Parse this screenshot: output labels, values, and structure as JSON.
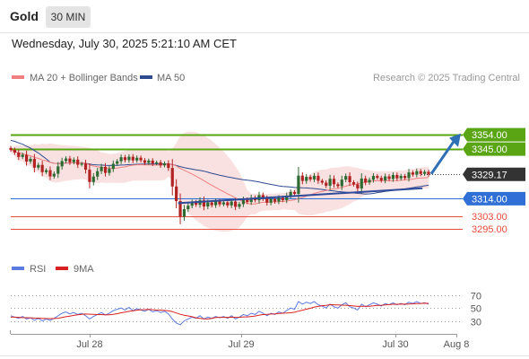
{
  "header": {
    "symbol": "Gold",
    "timeframe": "30 MIN",
    "datetime": "Wednesday, July 30, 2025 5:21:10 AM CET"
  },
  "colors": {
    "ma20_line": "#f08080",
    "bollinger_fill": "#fadede",
    "ma50_line": "#2f4b8f",
    "resistance": "#5aa514",
    "support": "#2f6fd6",
    "support_low": "#e74c3c",
    "candle_up": "#2d6b33",
    "candle_down": "#b22222",
    "trend_line": "#2f4b9a",
    "arrow": "#2f6fb5",
    "price_box": "#333333",
    "rsi_line": "#5b7be0",
    "rsi_ma_line": "#d92020"
  },
  "chart_data": [
    {
      "type": "candlestick",
      "legend_position": "top-left",
      "legend": [
        {
          "label": "MA 20 + Bollinger Bands",
          "color": "#f08080"
        },
        {
          "label": "MA 50",
          "color": "#2f4b8f"
        }
      ],
      "watermark": "Research © 2025 Trading Central",
      "ylim": [
        3285,
        3372
      ],
      "x_ticks": [
        "Jul 28",
        "Jul 29",
        "Jul 30",
        "Aug 8"
      ],
      "levels": [
        {
          "value": 3354.0,
          "label": "3354.00",
          "kind": "resistance"
        },
        {
          "value": 3345.0,
          "label": "3345.00",
          "kind": "resistance"
        },
        {
          "value": 3329.17,
          "label": "3329.17",
          "kind": "last_price"
        },
        {
          "value": 3314.0,
          "label": "3314.00",
          "kind": "support"
        },
        {
          "value": 3303.0,
          "label": "3303.00",
          "kind": "support_low"
        },
        {
          "value": 3295.0,
          "label": "3295.00",
          "kind": "support_low"
        }
      ],
      "close": [
        3344.5,
        3342.8,
        3340.1,
        3341.5,
        3337.2,
        3338.9,
        3333.4,
        3335.1,
        3330.6,
        3331.8,
        3327.9,
        3329.6,
        3334.2,
        3337.5,
        3339.1,
        3336.8,
        3338.4,
        3335.2,
        3336.0,
        3332.1,
        3324.4,
        3327.8,
        3331.2,
        3333.9,
        3330.1,
        3332.6,
        3335.8,
        3337.4,
        3339.9,
        3338.1,
        3340.2,
        3337.9,
        3339.6,
        3338.0,
        3336.4,
        3337.8,
        3335.9,
        3336.7,
        3334.8,
        3336.1,
        3333.2,
        3321.6,
        3312.5,
        3302.8,
        3307.4,
        3309.6,
        3311.8,
        3310.2,
        3313.0,
        3309.1,
        3311.6,
        3309.9,
        3312.3,
        3310.4,
        3311.7,
        3309.8,
        3312.2,
        3308.9,
        3310.6,
        3313.4,
        3311.9,
        3314.6,
        3313.0,
        3316.2,
        3314.1,
        3311.5,
        3313.8,
        3312.2,
        3314.5,
        3313.1,
        3315.9,
        3318.2,
        3317.0,
        3328.4,
        3325.1,
        3327.6,
        3326.0,
        3328.3,
        3325.2,
        3324.0,
        3322.1,
        3326.4,
        3323.0,
        3321.8,
        3325.9,
        3328.1,
        3324.3,
        3322.9,
        3320.4,
        3326.6,
        3324.1,
        3325.8,
        3328.2,
        3327.0,
        3325.4,
        3327.9,
        3326.3,
        3328.8,
        3326.7,
        3328.2,
        3326.9,
        3330.4,
        3329.0,
        3331.2,
        3329.5,
        3330.8,
        3329.17
      ],
      "rsi_panel": {
        "legend": [
          {
            "label": "RSI",
            "color": "#5b7be0"
          },
          {
            "label": "9MA",
            "color": "#d92020"
          }
        ],
        "ylim": [
          10,
          85
        ],
        "ticks": [
          70,
          50,
          30
        ],
        "rsi": [
          38,
          36,
          34,
          37,
          33,
          35,
          31,
          34,
          30,
          33,
          31,
          34,
          38,
          42,
          44,
          41,
          43,
          40,
          42,
          38,
          33,
          37,
          40,
          43,
          39,
          42,
          46,
          48,
          50,
          47,
          51,
          46,
          49,
          47,
          45,
          48,
          44,
          46,
          43,
          45,
          41,
          33,
          27,
          24,
          30,
          33,
          36,
          34,
          38,
          33,
          36,
          34,
          37,
          35,
          37,
          34,
          38,
          33,
          36,
          40,
          38,
          42,
          40,
          45,
          42,
          38,
          42,
          40,
          44,
          42,
          46,
          50,
          48,
          60,
          56,
          59,
          57,
          60,
          55,
          53,
          50,
          56,
          52,
          50,
          55,
          58,
          52,
          50,
          47,
          56,
          52,
          55,
          58,
          56,
          53,
          57,
          55,
          58,
          55,
          57,
          55,
          59,
          57,
          60,
          57,
          58,
          56
        ],
        "ma9": [
          36,
          35.8,
          35.5,
          35.2,
          35,
          34.8,
          34.5,
          34.3,
          34,
          33.8,
          33.6,
          33.7,
          34.2,
          35.3,
          36.5,
          37.5,
          38.6,
          39.5,
          40.3,
          40.7,
          40.4,
          40.1,
          39.9,
          39.8,
          39.5,
          39.6,
          40.3,
          41.3,
          42.6,
          43.6,
          44.9,
          45.8,
          46.7,
          47.3,
          47.5,
          47.9,
          47.3,
          47,
          46.8,
          46.3,
          45.8,
          44.4,
          42.4,
          40.3,
          38.9,
          37.8,
          36.5,
          34.8,
          33.9,
          33.2,
          33.1,
          34,
          35.3,
          35.5,
          35.6,
          35.6,
          35.8,
          35.5,
          35.7,
          36.2,
          36.3,
          36.9,
          37.6,
          39,
          39.9,
          40.2,
          40.7,
          41,
          41.7,
          41.9,
          42.2,
          42.7,
          43.5,
          45.2,
          46.6,
          48.2,
          49.6,
          51.5,
          52.5,
          53.6,
          54.2,
          55.2,
          55,
          54.8,
          54.5,
          54.3,
          53.8,
          53.2,
          52.5,
          52.7,
          52.6,
          52.8,
          53.4,
          54,
          54.3,
          54.9,
          55.3,
          55.8,
          55.9,
          56.1,
          56,
          56.3,
          56.5,
          57,
          57.1,
          57.3,
          57.2
        ]
      }
    }
  ]
}
